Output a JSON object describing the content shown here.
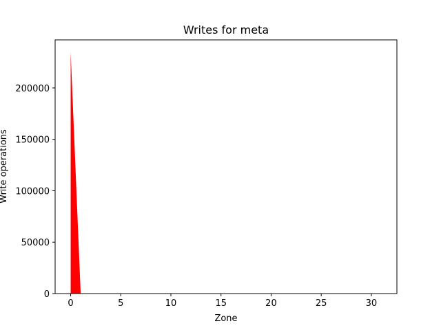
{
  "chart_data": {
    "type": "area",
    "title": "Writes for meta",
    "xlabel": "Zone",
    "ylabel": "Write operations",
    "x": [
      0,
      1,
      2,
      3,
      4,
      5,
      6,
      7,
      8,
      9,
      10,
      11,
      12,
      13,
      14,
      15,
      16,
      17,
      18,
      19,
      20,
      21,
      22,
      23,
      24,
      25,
      26,
      27,
      28,
      29,
      30,
      31
    ],
    "series": [
      {
        "values": [
          235000,
          0,
          0,
          0,
          0,
          0,
          0,
          0,
          0,
          0,
          0,
          0,
          0,
          0,
          0,
          0,
          0,
          0,
          0,
          0,
          0,
          0,
          0,
          0,
          0,
          0,
          0,
          0,
          0,
          0,
          0,
          0
        ],
        "color": "#ff0000"
      }
    ],
    "xticks": [
      0,
      5,
      10,
      15,
      20,
      25,
      30
    ],
    "yticks": [
      0,
      50000,
      100000,
      150000,
      200000
    ],
    "xlim": [
      -1.55,
      32.55
    ],
    "ylim": [
      0,
      246750
    ],
    "grid": false,
    "legend": "none"
  }
}
